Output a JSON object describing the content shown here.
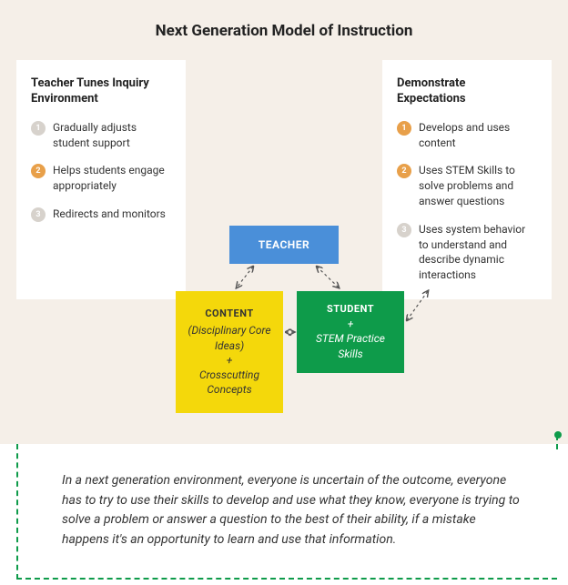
{
  "title": "Next Generation Model of Instruction",
  "left_card": {
    "title": "Teacher Tunes Inquiry Environment",
    "items": [
      {
        "n": "1",
        "text": "Gradually adjusts student support",
        "badge": "gray"
      },
      {
        "n": "2",
        "text": "Helps students engage appropriately",
        "badge": "orange"
      },
      {
        "n": "3",
        "text": "Redirects and monitors",
        "badge": "gray"
      }
    ]
  },
  "right_card": {
    "title": "Demonstrate Expectations",
    "items": [
      {
        "n": "1",
        "text": "Develops and uses content",
        "badge": "orange"
      },
      {
        "n": "2",
        "text": "Uses STEM Skills to solve problems and answer questions",
        "badge": "orange"
      },
      {
        "n": "3",
        "text": "Uses system behavior to understand and describe dynamic interactions",
        "badge": "gray"
      }
    ]
  },
  "nodes": {
    "teacher": {
      "label": "TEACHER",
      "bg": "#4a8fd9"
    },
    "content": {
      "title": "CONTENT",
      "line1": "(Disciplinary Core Ideas)",
      "plus": "+",
      "line2": "Crosscutting Concepts",
      "bg": "#f4d80b"
    },
    "student": {
      "title": "STUDENT",
      "plus": "+",
      "line1": "STEM Practice Skills",
      "bg": "#0e9b4a"
    }
  },
  "arrows": {
    "stroke": "#555555",
    "dash": "3,3",
    "width": 1.2
  },
  "quote": "In a next generation environment, everyone is uncertain of the outcome, everyone has to try to use their skills to develop and use what they know, everyone is trying to solve a problem or answer a question to the best of their ability, if a mistake happens it's an opportunity to learn and use that information.",
  "accent_green": "#0e9b4a"
}
